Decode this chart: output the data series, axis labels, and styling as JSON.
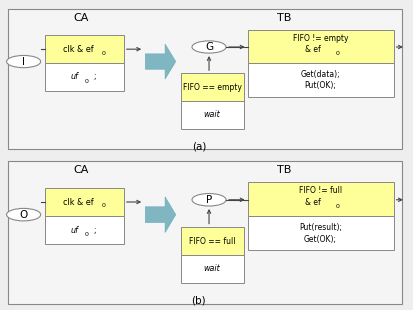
{
  "bg_color": "#eeeeee",
  "panel_bg": "#f5f5f5",
  "yellow": "#ffff99",
  "white": "#ffffff",
  "border_color": "#888888",
  "arrow_color": "#6aabb8",
  "text_color": "#000000",
  "line_color": "#444444",
  "fig_width": 4.14,
  "fig_height": 3.1,
  "dpi": 100,
  "panel_a": {
    "ca_label": "CA",
    "tb_label": "TB",
    "io_label": "I",
    "ca_box_top": "clk & ef",
    "ca_box_top_sub": "0",
    "ca_box_bot": "uf",
    "ca_box_bot_sub": "0",
    "fifo_box_top": "FIFO == empty",
    "fifo_box_bot": "wait",
    "state_label": "G",
    "right_box_line1": "FIFO != empty",
    "right_box_line2": "& ef",
    "right_box_sub": "0",
    "right_box_line3": "Get(data);",
    "right_box_line4": "Put(OK);",
    "panel_label": "(a)"
  },
  "panel_b": {
    "ca_label": "CA",
    "tb_label": "TB",
    "io_label": "O",
    "ca_box_top": "clk & ef",
    "ca_box_top_sub": "0",
    "ca_box_bot": "uf",
    "ca_box_bot_sub": "0",
    "fifo_box_top": "FIFO == full",
    "fifo_box_bot": "wait",
    "state_label": "P",
    "right_box_line1": "FIFO != full",
    "right_box_line2": "& ef",
    "right_box_sub": "0",
    "right_box_line3": "Put(result);",
    "right_box_line4": "Get(OK);",
    "panel_label": "(b)"
  }
}
